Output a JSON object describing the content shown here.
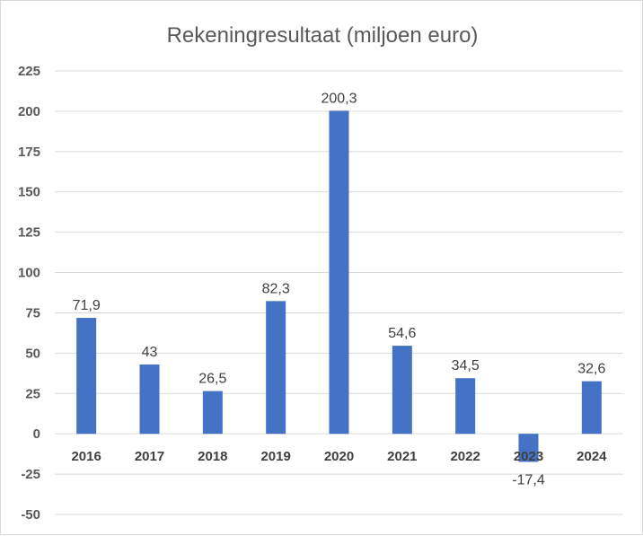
{
  "chart_data": {
    "type": "bar",
    "title": "Rekeningresultaat (miljoen euro)",
    "xlabel": "",
    "ylabel": "",
    "categories": [
      "2016",
      "2017",
      "2018",
      "2019",
      "2020",
      "2021",
      "2022",
      "2023",
      "2024"
    ],
    "values": [
      71.9,
      43,
      26.5,
      82.3,
      200.3,
      54.6,
      34.5,
      -17.4,
      32.6
    ],
    "data_labels": [
      "71,9",
      "43",
      "26,5",
      "82,3",
      "200,3",
      "54,6",
      "34,5",
      "-17,4",
      "32,6"
    ],
    "ylim": [
      -50,
      225
    ],
    "yticks": [
      225,
      200,
      175,
      150,
      125,
      100,
      75,
      50,
      25,
      0,
      -25,
      -50
    ],
    "grid": true,
    "legend": "none",
    "bar_color": "#4472c4"
  }
}
